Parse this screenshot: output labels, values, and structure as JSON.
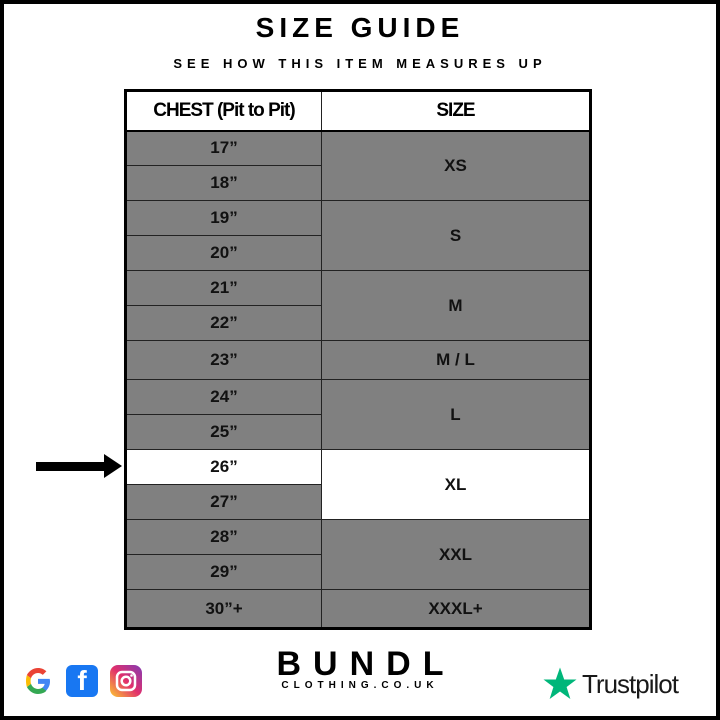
{
  "title": "SIZE GUIDE",
  "subtitle": "SEE HOW THIS ITEM MEASURES UP",
  "table": {
    "headers": [
      "CHEST (Pit to Pit)",
      "SIZE"
    ],
    "chest": [
      "17”",
      "18”",
      "19”",
      "20”",
      "21”",
      "22”",
      "23”",
      "24”",
      "25”",
      "26”",
      "27”",
      "28”",
      "29”",
      "30”+"
    ],
    "sizes": [
      "XS",
      "S",
      "M",
      "M / L",
      "L",
      "XL",
      "XXL",
      "XXXL+"
    ],
    "highlighted_chest": "26”",
    "highlighted_size": "XL"
  },
  "footer": {
    "social_icons": [
      "google-icon",
      "facebook-icon",
      "instagram-icon"
    ],
    "brand": "BUNDL",
    "brand_sub": "CLOTHING.CO.UK",
    "trustpilot": "Trustpilot"
  },
  "colors": {
    "row_bg": "#808080",
    "highlight_bg": "#ffffff",
    "trustpilot_green": "#00b67a"
  }
}
